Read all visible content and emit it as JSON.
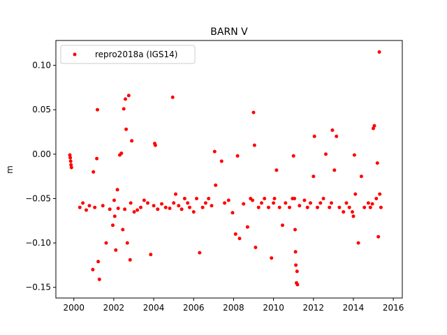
{
  "chart_data": {
    "type": "scatter",
    "title": "BARN V",
    "xlabel": "",
    "ylabel": "m",
    "xlim": [
      1999.1,
      2016.45
    ],
    "ylim": [
      -0.162,
      0.128
    ],
    "xticks": [
      2000,
      2002,
      2004,
      2006,
      2008,
      2010,
      2012,
      2014,
      2016
    ],
    "yticks": [
      -0.15,
      -0.1,
      -0.05,
      0.0,
      0.05,
      0.1
    ],
    "ytick_labels": [
      "−0.15",
      "−0.10",
      "−0.05",
      "0.00",
      "0.05",
      "0.10"
    ],
    "legend": {
      "placement": "upper-left",
      "label": "repro2018a (IGS14)"
    },
    "series": [
      {
        "name": "repro2018a (IGS14)",
        "color": "#ff0000",
        "marker": "point",
        "x": [
          1999.8,
          1999.82,
          1999.84,
          1999.86,
          1999.88,
          2000.3,
          2000.45,
          2000.62,
          2000.78,
          2000.95,
          2000.98,
          2001.05,
          2001.15,
          2001.18,
          2001.22,
          2001.28,
          2001.45,
          2001.62,
          2001.8,
          2001.95,
          2002.02,
          2002.05,
          2002.1,
          2002.18,
          2002.22,
          2002.3,
          2002.38,
          2002.45,
          2002.5,
          2002.55,
          2002.58,
          2002.62,
          2002.68,
          2002.75,
          2002.82,
          2002.85,
          2002.9,
          2003.02,
          2003.18,
          2003.35,
          2003.52,
          2003.7,
          2003.85,
          2004.0,
          2004.05,
          2004.08,
          2004.2,
          2004.4,
          2004.6,
          2004.8,
          2004.95,
          2005.0,
          2005.1,
          2005.25,
          2005.4,
          2005.55,
          2005.7,
          2005.8,
          2006.0,
          2006.15,
          2006.3,
          2006.45,
          2006.6,
          2006.75,
          2006.9,
          2007.05,
          2007.1,
          2007.4,
          2007.55,
          2007.75,
          2007.95,
          2008.1,
          2008.2,
          2008.3,
          2008.5,
          2008.7,
          2008.85,
          2008.95,
          2009.0,
          2009.05,
          2009.1,
          2009.25,
          2009.4,
          2009.55,
          2009.75,
          2009.9,
          2010.0,
          2010.05,
          2010.15,
          2010.3,
          2010.45,
          2010.6,
          2010.8,
          2010.95,
          2011.0,
          2011.05,
          2011.08,
          2011.1,
          2011.12,
          2011.15,
          2011.18,
          2011.2,
          2011.3,
          2011.55,
          2011.7,
          2011.85,
          2012.0,
          2012.05,
          2012.2,
          2012.35,
          2012.5,
          2012.62,
          2012.8,
          2012.9,
          2012.95,
          2013.05,
          2013.15,
          2013.3,
          2013.5,
          2013.65,
          2013.8,
          2013.95,
          2014.0,
          2014.05,
          2014.1,
          2014.25,
          2014.4,
          2014.55,
          2014.75,
          2014.85,
          2014.95,
          2015.0,
          2015.05,
          2015.15,
          2015.2,
          2015.25,
          2015.3,
          2015.32,
          2015.38
        ],
        "y": [
          -0.001,
          -0.004,
          -0.008,
          -0.012,
          -0.015,
          -0.06,
          -0.055,
          -0.063,
          -0.058,
          -0.13,
          -0.02,
          -0.06,
          -0.005,
          0.05,
          -0.121,
          -0.141,
          -0.058,
          -0.1,
          -0.062,
          -0.08,
          -0.052,
          -0.07,
          -0.108,
          -0.04,
          -0.061,
          -0.001,
          0.001,
          -0.085,
          0.051,
          -0.062,
          0.062,
          0.028,
          -0.1,
          0.066,
          -0.119,
          -0.055,
          0.015,
          -0.065,
          -0.063,
          -0.06,
          -0.052,
          -0.055,
          -0.113,
          -0.058,
          0.012,
          0.01,
          -0.062,
          -0.056,
          -0.06,
          -0.061,
          0.064,
          -0.055,
          -0.045,
          -0.058,
          -0.062,
          -0.05,
          -0.055,
          -0.06,
          -0.065,
          -0.05,
          -0.111,
          -0.06,
          -0.055,
          -0.05,
          -0.058,
          0.003,
          -0.035,
          -0.008,
          -0.055,
          -0.052,
          -0.066,
          -0.09,
          -0.002,
          -0.095,
          -0.056,
          -0.082,
          -0.05,
          -0.052,
          0.047,
          0.01,
          -0.105,
          -0.06,
          -0.055,
          -0.05,
          -0.06,
          -0.117,
          -0.055,
          -0.05,
          -0.018,
          -0.06,
          -0.08,
          -0.055,
          -0.06,
          -0.05,
          -0.002,
          -0.05,
          -0.085,
          -0.11,
          -0.125,
          -0.145,
          -0.132,
          -0.147,
          -0.058,
          -0.052,
          -0.06,
          -0.055,
          -0.025,
          0.02,
          -0.06,
          -0.055,
          -0.05,
          0.0,
          -0.06,
          -0.055,
          0.027,
          -0.018,
          0.02,
          -0.06,
          -0.065,
          -0.055,
          -0.06,
          -0.065,
          -0.07,
          -0.001,
          -0.045,
          -0.1,
          -0.025,
          -0.06,
          -0.055,
          -0.06,
          -0.056,
          0.029,
          0.032,
          -0.05,
          -0.01,
          -0.093,
          0.115,
          -0.045,
          -0.06
        ]
      }
    ],
    "grid": false
  }
}
